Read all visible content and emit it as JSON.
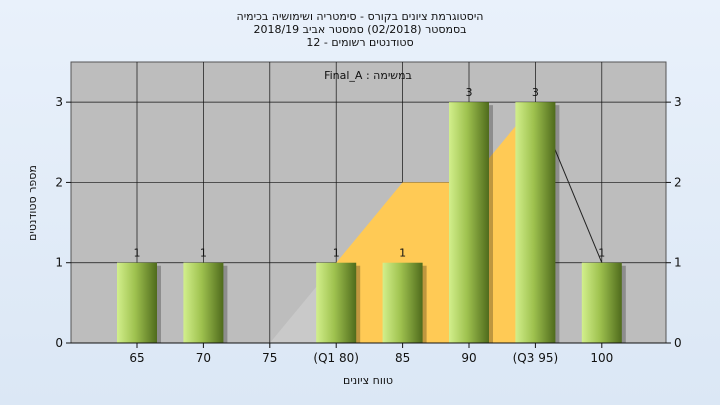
{
  "chart_data": {
    "type": "bar",
    "title_lines": [
      "היסטוגרמת ציונים בקורס - סימטריה ושימושיה בכימיה",
      "בסמסטר   (02/2018)  סמסטר אביב 2018/19",
      "סטודנטים רשומים - 12"
    ],
    "subtitle": "במשימה : Final_A",
    "categories": [
      "65",
      "70",
      "75",
      "(Q1 80)",
      "85",
      "90",
      "(Q3 95)",
      "100"
    ],
    "values": [
      1,
      1,
      0,
      1,
      1,
      3,
      3,
      1
    ],
    "data_labels": [
      "1",
      "1",
      "",
      "1",
      "1",
      "3",
      "3",
      "1"
    ],
    "xlabel": "טווח ציונים",
    "ylabel": "מספר סטודנטים",
    "ylim": [
      0,
      3.5
    ],
    "yticks": [
      0,
      1,
      2,
      3
    ],
    "grid": true,
    "quartile_area": {
      "x": [
        75,
        80,
        85,
        90,
        95,
        100
      ],
      "y": [
        0,
        1,
        2,
        2,
        3,
        1
      ]
    },
    "colors": {
      "plot_bg": "#bdbdbd",
      "bar_light": "#d2ef8c",
      "bar_dark": "#4f6b1c",
      "area": "#ffca55",
      "area_gray": "#c9c9c9"
    }
  }
}
